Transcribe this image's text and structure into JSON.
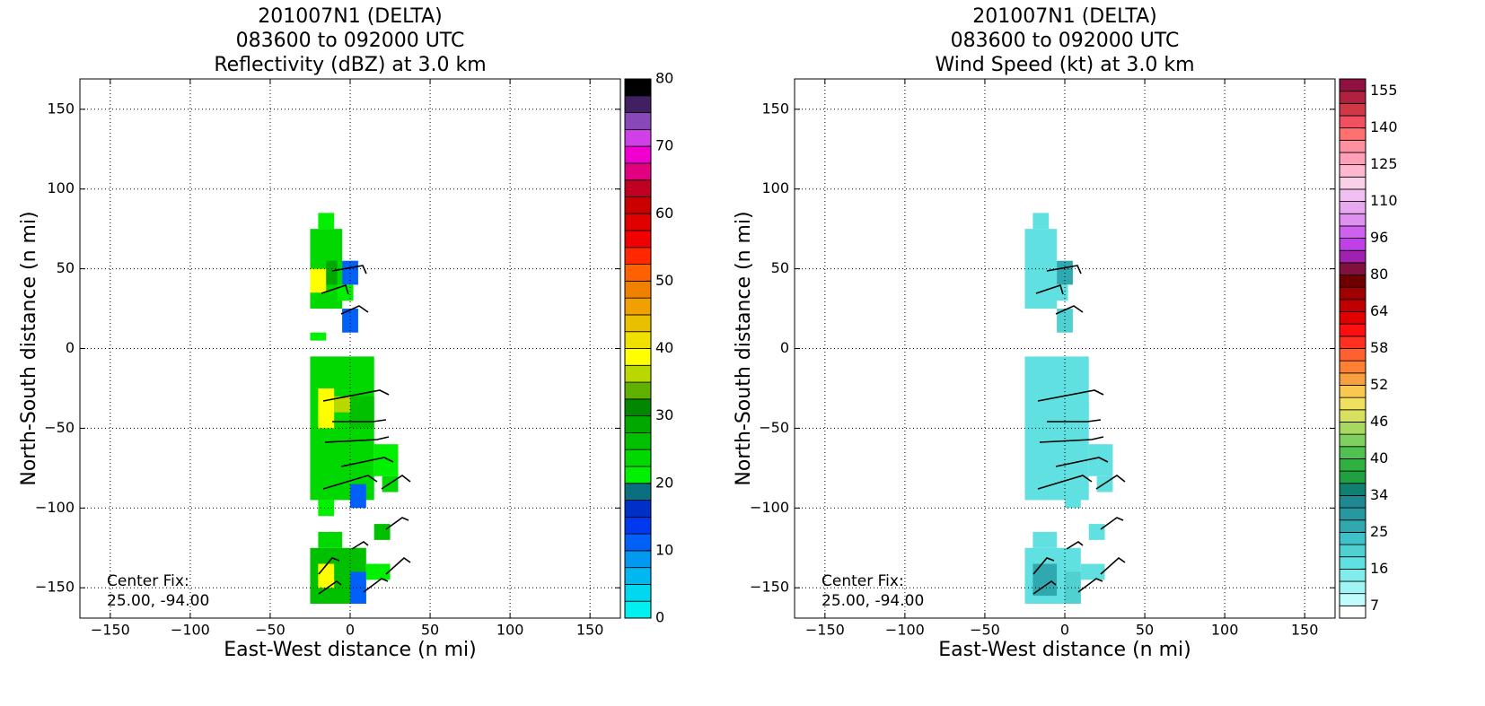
{
  "chart_data": [
    {
      "type": "heatmap",
      "title": [
        "201007N1 (DELTA)",
        "083600 to 092000 UTC",
        "Reflectivity (dBZ) at 3.0 km"
      ],
      "xlabel": "East-West distance (n mi)",
      "ylabel": "North-South distance (n mi)",
      "xlim": [
        -169,
        169
      ],
      "ylim": [
        -169,
        169
      ],
      "xticks": [
        {
          "value": -150,
          "label": "−150"
        },
        {
          "value": -100,
          "label": "−100"
        },
        {
          "value": -50,
          "label": "−50"
        },
        0,
        50,
        100,
        150
      ],
      "yticks": [
        {
          "value": -150,
          "label": "−150"
        },
        {
          "value": -100,
          "label": "−100"
        },
        {
          "value": -50,
          "label": "−50"
        },
        0,
        50,
        100,
        150
      ],
      "grid": true,
      "annotation": [
        "Center Fix:",
        "25.00, -94.00"
      ],
      "cells": [
        [
          -25,
          25,
          -5,
          75,
          24
        ],
        [
          -20,
          75,
          -10,
          85,
          22
        ],
        [
          -25,
          35,
          -15,
          50,
          38
        ],
        [
          -15,
          40,
          -8,
          55,
          28
        ],
        [
          -5,
          40,
          5,
          55,
          12
        ],
        [
          -8,
          30,
          2,
          40,
          22
        ],
        [
          -5,
          10,
          5,
          25,
          12
        ],
        [
          -25,
          5,
          -15,
          10,
          22
        ],
        [
          -25,
          -95,
          15,
          -5,
          24
        ],
        [
          -20,
          -50,
          -10,
          -25,
          38
        ],
        [
          -10,
          -40,
          0,
          -30,
          36
        ],
        [
          0,
          -50,
          15,
          -30,
          26
        ],
        [
          15,
          -80,
          30,
          -60,
          22
        ],
        [
          20,
          -90,
          30,
          -80,
          24
        ],
        [
          0,
          -100,
          10,
          -85,
          12
        ],
        [
          -20,
          -105,
          -10,
          -95,
          22
        ],
        [
          15,
          -120,
          25,
          -110,
          26
        ],
        [
          -25,
          -160,
          10,
          -125,
          26
        ],
        [
          -20,
          -150,
          -10,
          -135,
          38
        ],
        [
          -20,
          -125,
          -5,
          -115,
          24
        ],
        [
          0,
          -160,
          10,
          -140,
          12
        ],
        [
          10,
          -145,
          25,
          -135,
          22
        ]
      ],
      "colorbar": {
        "levels": [
          0,
          2.5,
          5,
          7.5,
          10,
          12.5,
          15,
          17.5,
          20,
          22.5,
          25,
          27.5,
          30,
          32.5,
          35,
          37.5,
          40,
          42.5,
          45,
          47.5,
          50,
          52.5,
          55,
          57.5,
          60,
          62.5,
          65,
          67.5,
          70,
          72.5,
          75,
          77.5,
          80
        ],
        "colors": [
          "#00f0f0",
          "#00d8f0",
          "#00b8f0",
          "#0098f0",
          "#0060f8",
          "#0038f0",
          "#0030c8",
          "#0a7080",
          "#00f000",
          "#00d800",
          "#00c000",
          "#00a800",
          "#008800",
          "#60b000",
          "#b8d800",
          "#ffff00",
          "#f0e000",
          "#e8c000",
          "#f0a000",
          "#f08000",
          "#ff6000",
          "#ff2800",
          "#f00000",
          "#e00000",
          "#c80000",
          "#c00020",
          "#e00080",
          "#f000d0",
          "#d040e8",
          "#8848b8",
          "#402060",
          "#000000"
        ],
        "ticks": [
          0,
          10,
          20,
          30,
          40,
          50,
          60,
          70,
          80
        ]
      }
    },
    {
      "type": "heatmap",
      "title": [
        "201007N1 (DELTA)",
        "083600 to 092000 UTC",
        "Wind Speed (kt) at 3.0 km"
      ],
      "xlabel": "East-West distance (n mi)",
      "ylabel": "North-South distance (n mi)",
      "xlim": [
        -169,
        169
      ],
      "ylim": [
        -169,
        169
      ],
      "xticks": [
        {
          "value": -150,
          "label": "−150"
        },
        {
          "value": -100,
          "label": "−100"
        },
        {
          "value": -50,
          "label": "−50"
        },
        0,
        50,
        100,
        150
      ],
      "yticks": [
        {
          "value": -150,
          "label": "−150"
        },
        {
          "value": -100,
          "label": "−100"
        },
        {
          "value": -50,
          "label": "−50"
        },
        0,
        50,
        100,
        150
      ],
      "grid": true,
      "annotation": [
        "Center Fix:",
        "25.00, -94.00"
      ],
      "cells": [
        [
          -25,
          25,
          -5,
          75,
          17
        ],
        [
          -20,
          75,
          -10,
          85,
          17
        ],
        [
          -5,
          40,
          5,
          55,
          26
        ],
        [
          -8,
          30,
          2,
          40,
          18
        ],
        [
          -5,
          10,
          5,
          25,
          19
        ],
        [
          -25,
          -95,
          15,
          -5,
          17
        ],
        [
          0,
          -50,
          15,
          -30,
          18
        ],
        [
          15,
          -80,
          30,
          -60,
          17
        ],
        [
          20,
          -90,
          30,
          -80,
          17
        ],
        [
          0,
          -100,
          10,
          -85,
          18
        ],
        [
          15,
          -120,
          25,
          -110,
          17
        ],
        [
          -25,
          -160,
          10,
          -125,
          18
        ],
        [
          -20,
          -155,
          -5,
          -135,
          26
        ],
        [
          -20,
          -125,
          -5,
          -115,
          17
        ],
        [
          0,
          -160,
          10,
          -140,
          21
        ],
        [
          10,
          -145,
          25,
          -135,
          17
        ]
      ],
      "colorbar": {
        "levels": [
          4,
          7,
          10,
          13,
          16,
          19,
          22,
          25,
          28,
          31,
          34,
          36,
          38,
          40,
          42,
          44,
          46,
          48,
          50,
          52,
          54,
          56,
          58,
          60,
          62,
          64,
          69,
          75,
          80,
          85,
          91,
          96,
          101,
          105,
          110,
          115,
          120,
          125,
          130,
          135,
          140,
          145,
          150,
          155,
          160
        ],
        "colors": [
          "#ffffff",
          "#c0fcfc",
          "#a0f4f4",
          "#80ecec",
          "#60e0e0",
          "#50d0d0",
          "#40c0c8",
          "#30a8b0",
          "#2898a0",
          "#208890",
          "#108070",
          "#20a040",
          "#30b040",
          "#50c050",
          "#80d060",
          "#a8d860",
          "#d8e060",
          "#f0e060",
          "#f8c850",
          "#f8a040",
          "#ff8030",
          "#ff6030",
          "#ff3020",
          "#ff1010",
          "#e00000",
          "#c00000",
          "#a00000",
          "#700000",
          "#801040",
          "#a020b0",
          "#c040e8",
          "#d060f0",
          "#e090f0",
          "#e8a8f0",
          "#f0c0f0",
          "#f8d0e8",
          "#ffb8d0",
          "#ffa0b8",
          "#ff90a0",
          "#ff7070",
          "#f05060",
          "#d03848",
          "#b02040",
          "#901040"
        ],
        "ticks": [
          7,
          16,
          25,
          34,
          40,
          46,
          52,
          58,
          64,
          80,
          96,
          110,
          125,
          140,
          155
        ]
      }
    }
  ]
}
